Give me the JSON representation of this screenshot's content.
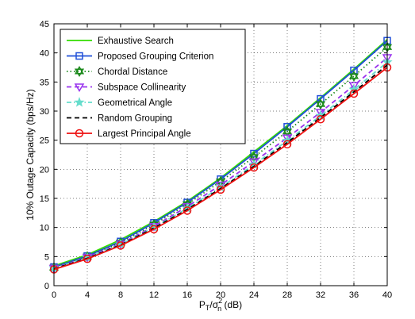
{
  "chart_data": {
    "type": "line",
    "title": "",
    "xlabel_main": "P",
    "xlabel_sub1": "T",
    "xlabel_mid": "/σ",
    "xlabel_sup": "2",
    "xlabel_sub2": "n",
    "xlabel_tail": " (dB)",
    "ylabel": "10% Outage Capacity (bps/Hz)",
    "xlim": [
      0,
      40
    ],
    "ylim": [
      0,
      45
    ],
    "xticks": [
      0,
      4,
      8,
      12,
      16,
      20,
      24,
      28,
      32,
      36,
      40
    ],
    "yticks": [
      0,
      5,
      10,
      15,
      20,
      25,
      30,
      35,
      40,
      45
    ],
    "grid": true,
    "legend_position": "top-left",
    "x": [
      0,
      4,
      8,
      12,
      16,
      20,
      24,
      28,
      32,
      36,
      40
    ],
    "series": [
      {
        "name": "Exhaustive Search",
        "color": "#33dd00",
        "dash": "solid",
        "marker": "none",
        "values": [
          3.4,
          5.3,
          7.9,
          11.0,
          14.5,
          18.5,
          23.0,
          27.5,
          32.3,
          37.2,
          42.3
        ]
      },
      {
        "name": "Proposed Grouping Criterion",
        "color": "#1f4fd8",
        "dash": "solid",
        "marker": "square",
        "values": [
          3.2,
          5.1,
          7.6,
          10.8,
          14.3,
          18.3,
          22.7,
          27.3,
          32.1,
          37.0,
          42.1
        ]
      },
      {
        "name": "Chordal Distance",
        "color": "#1b8a1b",
        "dash": "dotted",
        "marker": "hexagram",
        "values": [
          3.1,
          5.0,
          7.4,
          10.5,
          14.0,
          17.9,
          22.1,
          26.5,
          31.2,
          36.0,
          41.0
        ]
      },
      {
        "name": "Subspace Collinearity",
        "color": "#9933ee",
        "dash": "dashed",
        "marker": "triangle-down",
        "values": [
          3.0,
          4.9,
          7.2,
          10.2,
          13.6,
          17.3,
          21.3,
          25.4,
          29.8,
          34.4,
          39.2
        ]
      },
      {
        "name": "Geometrical Angle",
        "color": "#66ddcc",
        "dash": "dashdot",
        "marker": "star",
        "values": [
          3.0,
          4.8,
          7.1,
          10.0,
          13.3,
          16.9,
          20.8,
          24.9,
          29.2,
          33.7,
          38.4
        ]
      },
      {
        "name": "Random Grouping",
        "color": "#000000",
        "dash": "dashed",
        "marker": "none",
        "values": [
          2.9,
          4.7,
          7.0,
          9.9,
          13.1,
          16.7,
          20.5,
          24.6,
          28.9,
          33.3,
          37.9
        ]
      },
      {
        "name": "Largest Principal Angle",
        "color": "#ee1111",
        "dash": "solid",
        "marker": "circle",
        "values": [
          2.8,
          4.6,
          6.9,
          9.7,
          12.9,
          16.5,
          20.3,
          24.3,
          28.6,
          33.0,
          37.5
        ]
      }
    ]
  }
}
